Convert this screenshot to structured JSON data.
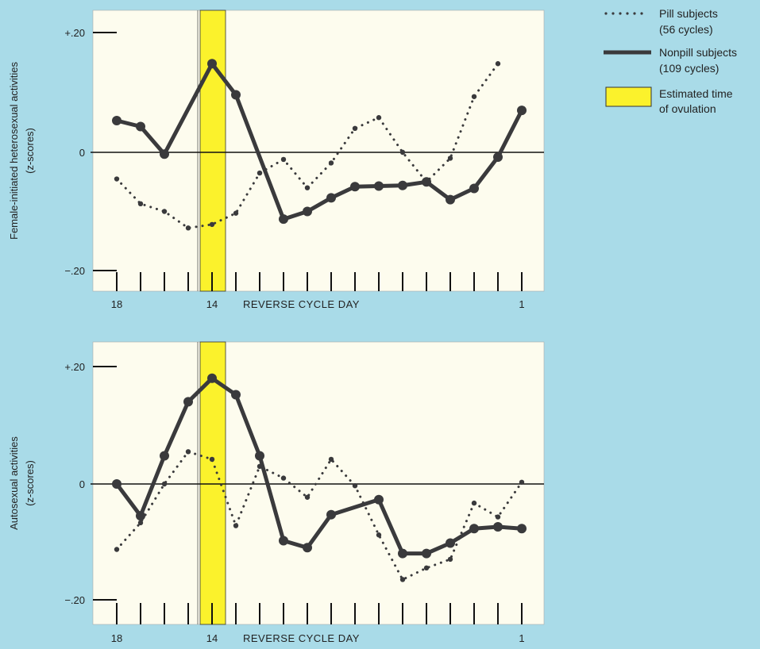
{
  "legend": {
    "pill": {
      "line1": "Pill subjects",
      "line2": "(56 cycles)"
    },
    "nonpill": {
      "line1": "Nonpill subjects",
      "line2": "(109 cycles)"
    },
    "ovulation": {
      "line1": "Estimated time",
      "line2": "of ovulation"
    }
  },
  "colors": {
    "panel_bg": "#fdfcee",
    "ovulation": "#fbf22c",
    "nonpill": "#3a3a3c",
    "pill": "#3a3a3c",
    "page_bg": "#a9dbe8"
  },
  "chart_data": [
    {
      "type": "line",
      "ylabel_line1": "Female-initiated heterosexual activities",
      "ylabel_line2": "(z-scores)",
      "xlabel": "REVERSE CYCLE DAY",
      "x": [
        18,
        17,
        16,
        15,
        14,
        13,
        12,
        11,
        10,
        9,
        8,
        7,
        6,
        5,
        4,
        3,
        2,
        1
      ],
      "x_tick_labels": [
        {
          "x": 18,
          "label": "18"
        },
        {
          "x": 14,
          "label": "14"
        },
        {
          "x": 1,
          "label": "1"
        }
      ],
      "y_ticks": [
        {
          "v": 0.2,
          "label": "+.20"
        },
        {
          "v": 0,
          "label": "0"
        },
        {
          "v": -0.2,
          "label": "−.20"
        }
      ],
      "ylim": [
        -0.235,
        0.235
      ],
      "ovulation_days": [
        15,
        13
      ],
      "series": [
        {
          "name": "Nonpill subjects",
          "style": "solid",
          "values": [
            0.053,
            0.043,
            -0.003,
            null,
            0.148,
            0.096,
            null,
            -0.113,
            -0.1,
            -0.077,
            -0.058,
            -0.057,
            -0.056,
            -0.05,
            -0.08,
            -0.061,
            -0.008,
            0.07
          ]
        },
        {
          "name": "Pill subjects",
          "style": "dotted",
          "values": [
            -0.045,
            -0.087,
            -0.1,
            -0.128,
            -0.122,
            -0.103,
            -0.035,
            -0.012,
            -0.06,
            -0.018,
            0.04,
            0.058,
            0.0,
            -0.05,
            -0.01,
            0.093,
            0.148,
            null
          ]
        }
      ]
    },
    {
      "type": "line",
      "ylabel_line1": "Autosexual activities",
      "ylabel_line2": "(z-scores)",
      "xlabel": "REVERSE CYCLE DAY",
      "x": [
        18,
        17,
        16,
        15,
        14,
        13,
        12,
        11,
        10,
        9,
        8,
        7,
        6,
        5,
        4,
        3,
        2,
        1
      ],
      "x_tick_labels": [
        {
          "x": 18,
          "label": "18"
        },
        {
          "x": 14,
          "label": "14"
        },
        {
          "x": 1,
          "label": "1"
        }
      ],
      "y_ticks": [
        {
          "v": 0.2,
          "label": "+.20"
        },
        {
          "v": 0,
          "label": "0"
        },
        {
          "v": -0.2,
          "label": "−.20"
        }
      ],
      "ylim": [
        -0.24,
        0.245
      ],
      "ovulation_days": [
        15,
        13
      ],
      "series": [
        {
          "name": "Nonpill subjects",
          "style": "solid",
          "values": [
            0.0,
            -0.055,
            0.048,
            0.14,
            0.18,
            0.152,
            0.048,
            -0.098,
            -0.11,
            -0.053,
            null,
            -0.027,
            -0.12,
            -0.12,
            -0.102,
            -0.077,
            -0.074,
            -0.077
          ]
        },
        {
          "name": "Pill subjects",
          "style": "dotted",
          "values": [
            -0.113,
            -0.067,
            0.0,
            0.055,
            0.042,
            -0.072,
            0.03,
            0.01,
            -0.023,
            0.042,
            -0.003,
            -0.088,
            -0.165,
            -0.145,
            -0.13,
            -0.033,
            -0.057,
            0.003
          ]
        }
      ]
    }
  ]
}
